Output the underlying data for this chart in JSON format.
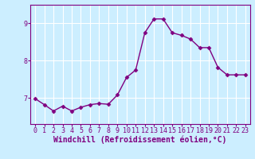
{
  "x": [
    0,
    1,
    2,
    3,
    4,
    5,
    6,
    7,
    8,
    9,
    10,
    11,
    12,
    13,
    14,
    15,
    16,
    17,
    18,
    19,
    20,
    21,
    22,
    23
  ],
  "y": [
    6.98,
    6.82,
    6.65,
    6.78,
    6.65,
    6.75,
    6.82,
    6.85,
    6.83,
    7.08,
    7.55,
    7.75,
    8.75,
    9.12,
    9.12,
    8.75,
    8.68,
    8.58,
    8.35,
    8.35,
    7.82,
    7.62,
    7.62,
    7.62
  ],
  "line_color": "#800080",
  "marker": "D",
  "marker_size": 2.5,
  "bg_color": "#cceeff",
  "grid_color": "#ffffff",
  "xlabel": "Windchill (Refroidissement éolien,°C)",
  "ylabel": "",
  "xlim": [
    -0.5,
    23.5
  ],
  "ylim": [
    6.3,
    9.5
  ],
  "yticks": [
    7,
    8,
    9
  ],
  "xticks": [
    0,
    1,
    2,
    3,
    4,
    5,
    6,
    7,
    8,
    9,
    10,
    11,
    12,
    13,
    14,
    15,
    16,
    17,
    18,
    19,
    20,
    21,
    22,
    23
  ],
  "tick_fontsize": 6,
  "xlabel_fontsize": 7,
  "line_width": 1.0,
  "spine_color": "#800080",
  "tick_color": "#800080"
}
